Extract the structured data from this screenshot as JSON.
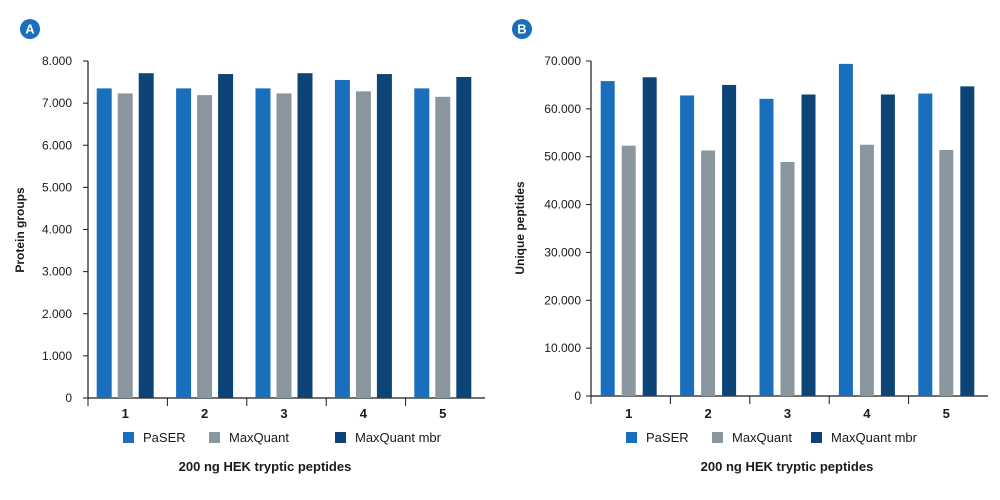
{
  "colors": {
    "paser": "#1a6fbd",
    "maxquant": "#8a979f",
    "mbr": "#0d4477",
    "axis": "#1a1a1a",
    "badge": "#1a6fbd"
  },
  "chart_data": [
    {
      "type": "bar",
      "panel": "A",
      "categories": [
        "1",
        "2",
        "3",
        "4",
        "5"
      ],
      "series": [
        {
          "name": "PaSER",
          "values": [
            7350,
            7350,
            7350,
            7550,
            7350
          ]
        },
        {
          "name": "MaxQuant",
          "values": [
            7230,
            7190,
            7230,
            7280,
            7150
          ]
        },
        {
          "name": "MaxQuant mbr",
          "values": [
            7710,
            7690,
            7710,
            7690,
            7620
          ]
        }
      ],
      "ylabel": "Protein groups",
      "xlabel": "200 ng HEK tryptic peptides",
      "ylim": [
        0,
        8000
      ],
      "yticks": [
        "0",
        "1.000",
        "2.000",
        "3.000",
        "4.000",
        "5.000",
        "6.000",
        "7.000",
        "8.000"
      ],
      "legend": [
        "PaSER",
        "MaxQuant",
        "MaxQuant mbr"
      ],
      "grid": false
    },
    {
      "type": "bar",
      "panel": "B",
      "categories": [
        "1",
        "2",
        "3",
        "4",
        "5"
      ],
      "series": [
        {
          "name": "PaSER",
          "values": [
            65800,
            62800,
            62100,
            69400,
            63200
          ]
        },
        {
          "name": "MaxQuant",
          "values": [
            52300,
            51300,
            48900,
            52500,
            51400
          ]
        },
        {
          "name": "MaxQuant mbr",
          "values": [
            66600,
            65000,
            63000,
            63000,
            64700
          ]
        }
      ],
      "ylabel": "Unique peptides",
      "xlabel": "200 ng HEK tryptic peptides",
      "ylim": [
        0,
        70000
      ],
      "yticks": [
        "0",
        "10.000",
        "20.000",
        "30.000",
        "40.000",
        "50.000",
        "60.000",
        "70.000"
      ],
      "legend": [
        "PaSER",
        "MaxQuant",
        "MaxQuant mbr"
      ],
      "grid": false
    }
  ]
}
